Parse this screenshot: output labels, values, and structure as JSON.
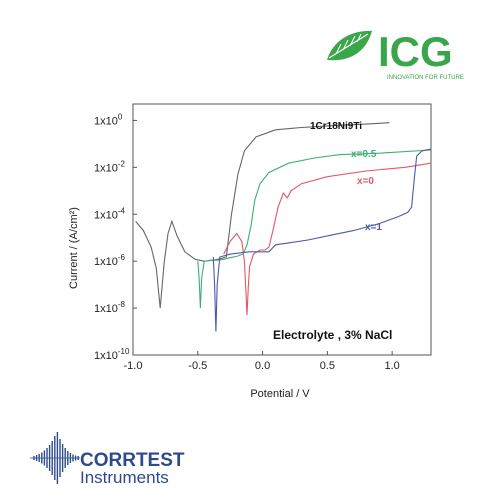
{
  "logos": {
    "icg": {
      "text": "ICG",
      "tagline": "INNOVATION FOR FUTURE",
      "color": "#3aa64a"
    },
    "corrtest": {
      "line1": "CORRTEST",
      "line2": "Instruments",
      "color": "#2c4a8c"
    }
  },
  "chart_data": {
    "type": "line",
    "xlabel": "Potential / V",
    "ylabel": "Current / (A/cm²)",
    "xlim": [
      -1.0,
      1.3
    ],
    "ylim": [
      1e-10,
      5
    ],
    "y_scale": "log",
    "x_ticks": [
      "-1.0",
      "-0.5",
      "0.0",
      "0.5",
      "1.0"
    ],
    "y_ticks": [
      {
        "value": 1.0,
        "base": "1x10",
        "exp": "0"
      },
      {
        "value": 0.01,
        "base": "1x10",
        "exp": "-2"
      },
      {
        "value": 0.0001,
        "base": "1x10",
        "exp": "-4"
      },
      {
        "value": 1e-06,
        "base": "1x10",
        "exp": "-6"
      },
      {
        "value": 1e-08,
        "base": "1x10",
        "exp": "-8"
      },
      {
        "value": 1e-10,
        "base": "1x10",
        "exp": "-10"
      }
    ],
    "annotation": "Electrolyte ,  3% NaCl",
    "grid": false,
    "series": [
      {
        "name": "1Cr18Ni9Ti",
        "color": "#666666",
        "points": [
          [
            -0.98,
            5e-05
          ],
          [
            -0.92,
            2e-05
          ],
          [
            -0.86,
            4e-06
          ],
          [
            -0.82,
            5e-07
          ],
          [
            -0.79,
            1e-08
          ],
          [
            -0.76,
            8e-07
          ],
          [
            -0.73,
            1.5e-05
          ],
          [
            -0.7,
            5e-05
          ],
          [
            -0.66,
            1.2e-05
          ],
          [
            -0.6,
            2.5e-06
          ],
          [
            -0.52,
            1.2e-06
          ],
          [
            -0.45,
            1e-06
          ],
          [
            -0.38,
            1.1e-06
          ],
          [
            -0.32,
            1.3e-06
          ],
          [
            -0.28,
            1.5e-06
          ],
          [
            -0.24,
            0.0001
          ],
          [
            -0.19,
            0.005
          ],
          [
            -0.14,
            0.05
          ],
          [
            -0.05,
            0.2
          ],
          [
            0.1,
            0.4
          ],
          [
            0.3,
            0.5
          ],
          [
            0.55,
            0.6
          ],
          [
            0.8,
            0.7
          ],
          [
            0.98,
            0.8
          ]
        ]
      },
      {
        "name": "x=0.5",
        "color": "#3fae74",
        "points": [
          [
            -0.5,
            1e-06
          ],
          [
            -0.49,
            2e-07
          ],
          [
            -0.48,
            1e-08
          ],
          [
            -0.47,
            2e-07
          ],
          [
            -0.45,
            1e-06
          ],
          [
            -0.4,
            1.1e-06
          ],
          [
            -0.35,
            1.1e-06
          ],
          [
            -0.3,
            1.2e-06
          ],
          [
            -0.25,
            1.4e-06
          ],
          [
            -0.2,
            1.6e-06
          ],
          [
            -0.15,
            2e-06
          ],
          [
            -0.12,
            5e-06
          ],
          [
            -0.09,
            3e-05
          ],
          [
            -0.06,
            0.0004
          ],
          [
            -0.02,
            0.002
          ],
          [
            0.05,
            0.006
          ],
          [
            0.2,
            0.015
          ],
          [
            0.4,
            0.025
          ],
          [
            0.6,
            0.035
          ],
          [
            0.9,
            0.04
          ],
          [
            1.3,
            0.055
          ]
        ]
      },
      {
        "name": "x=0",
        "color": "#e05a60",
        "points": [
          [
            -0.3,
            2e-06
          ],
          [
            -0.25,
            7e-06
          ],
          [
            -0.2,
            1.5e-05
          ],
          [
            -0.16,
            7e-06
          ],
          [
            -0.14,
            1e-06
          ],
          [
            -0.13,
            8e-08
          ],
          [
            -0.12,
            5e-09
          ],
          [
            -0.11,
            8e-08
          ],
          [
            -0.1,
            6e-07
          ],
          [
            -0.07,
            2e-06
          ],
          [
            -0.02,
            3e-06
          ],
          [
            0.02,
            3e-06
          ],
          [
            0.05,
            4e-06
          ],
          [
            0.08,
            2e-05
          ],
          [
            0.12,
            0.0002
          ],
          [
            0.16,
            0.0008
          ],
          [
            0.19,
            0.0005
          ],
          [
            0.22,
            0.001
          ],
          [
            0.3,
            0.002
          ],
          [
            0.5,
            0.004
          ],
          [
            0.8,
            0.007
          ],
          [
            1.1,
            0.01
          ],
          [
            1.3,
            0.015
          ]
        ]
      },
      {
        "name": "x=1",
        "color": "#4a5aaa",
        "points": [
          [
            -0.38,
            1.5e-06
          ],
          [
            -0.37,
            1e-07
          ],
          [
            -0.36,
            1e-09
          ],
          [
            -0.35,
            1e-07
          ],
          [
            -0.33,
            1.5e-06
          ],
          [
            -0.25,
            2e-06
          ],
          [
            -0.1,
            2.5e-06
          ],
          [
            0.0,
            2.5e-06
          ],
          [
            0.05,
            2.5e-06
          ],
          [
            0.1,
            5e-06
          ],
          [
            0.2,
            6e-06
          ],
          [
            0.35,
            8e-06
          ],
          [
            0.5,
            1.2e-05
          ],
          [
            0.7,
            2e-05
          ],
          [
            0.9,
            4e-05
          ],
          [
            1.05,
            8e-05
          ],
          [
            1.12,
            0.00012
          ],
          [
            1.15,
            0.0002
          ],
          [
            1.17,
            0.003
          ],
          [
            1.19,
            0.03
          ],
          [
            1.23,
            0.05
          ],
          [
            1.3,
            0.06
          ]
        ]
      }
    ]
  }
}
